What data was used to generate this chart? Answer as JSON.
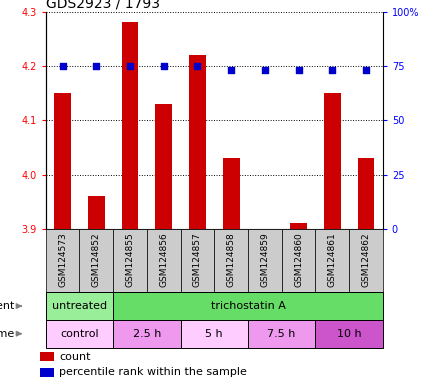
{
  "title": "GDS2923 / 1793",
  "samples": [
    "GSM124573",
    "GSM124852",
    "GSM124855",
    "GSM124856",
    "GSM124857",
    "GSM124858",
    "GSM124859",
    "GSM124860",
    "GSM124861",
    "GSM124862"
  ],
  "count_values": [
    4.15,
    3.96,
    4.28,
    4.13,
    4.22,
    4.03,
    3.9,
    3.91,
    4.15,
    4.03
  ],
  "percentile_values": [
    75,
    75,
    75,
    75,
    75,
    73,
    73,
    73,
    73,
    73
  ],
  "ylim_left": [
    3.9,
    4.3
  ],
  "ylim_right": [
    0,
    100
  ],
  "yticks_left": [
    3.9,
    4.0,
    4.1,
    4.2,
    4.3
  ],
  "yticks_right": [
    0,
    25,
    50,
    75,
    100
  ],
  "ytick_labels_right": [
    "0",
    "25",
    "50",
    "75",
    "100%"
  ],
  "bar_color": "#cc0000",
  "dot_color": "#0000cc",
  "sample_bg_color": "#cccccc",
  "agent_row": [
    {
      "label": "untreated",
      "start": 0,
      "end": 2,
      "color": "#99ee99"
    },
    {
      "label": "trichostatin A",
      "start": 2,
      "end": 10,
      "color": "#66dd66"
    }
  ],
  "time_row": [
    {
      "label": "control",
      "start": 0,
      "end": 2,
      "color": "#ffbbff"
    },
    {
      "label": "2.5 h",
      "start": 2,
      "end": 4,
      "color": "#ee88ee"
    },
    {
      "label": "5 h",
      "start": 4,
      "end": 6,
      "color": "#ffbbff"
    },
    {
      "label": "7.5 h",
      "start": 6,
      "end": 8,
      "color": "#ee88ee"
    },
    {
      "label": "10 h",
      "start": 8,
      "end": 10,
      "color": "#cc44cc"
    }
  ],
  "legend_count_color": "#cc0000",
  "legend_percentile_color": "#0000cc",
  "title_fontsize": 10,
  "tick_fontsize": 7,
  "sample_fontsize": 6.5,
  "label_fontsize": 8,
  "bar_width": 0.5
}
